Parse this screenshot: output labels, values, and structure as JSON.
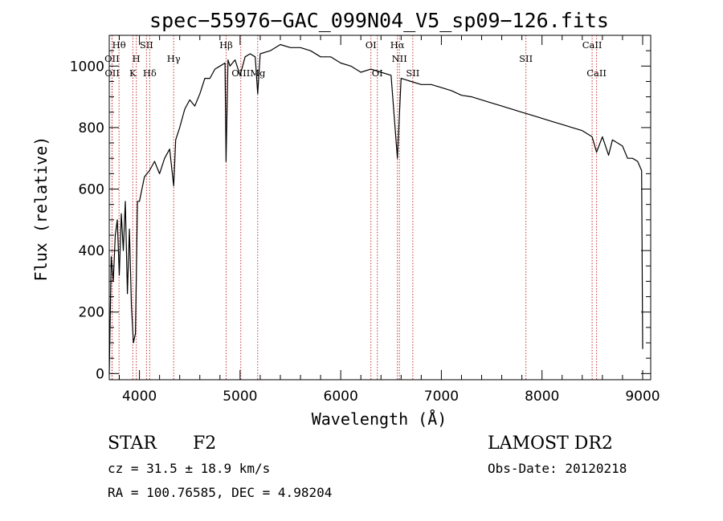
{
  "chart_data": {
    "type": "line",
    "title": "spec−55976−GAC_099N04_V5_sp09−126.fits",
    "xlabel": "Wavelength (Å)",
    "ylabel": "Flux (relative)",
    "xlim": [
      3700,
      9080
    ],
    "ylim": [
      -20,
      1100
    ],
    "xticks": [
      4000,
      5000,
      6000,
      7000,
      8000,
      9000
    ],
    "yticks": [
      0,
      200,
      400,
      600,
      800,
      1000
    ],
    "grid": false,
    "spectral_lines": [
      {
        "name": "Hθ",
        "wavelength": 3797,
        "row": 0
      },
      {
        "name": "OII",
        "wavelength": 3727,
        "row": 1
      },
      {
        "name": "OII",
        "wavelength": 3729,
        "row": 2
      },
      {
        "name": "SII",
        "wavelength": 4070,
        "row": 0
      },
      {
        "name": "H",
        "wavelength": 3969,
        "row": 1
      },
      {
        "name": "K",
        "wavelength": 3934,
        "row": 2
      },
      {
        "name": "Hδ",
        "wavelength": 4102,
        "row": 2
      },
      {
        "name": "Hγ",
        "wavelength": 4340,
        "row": 1
      },
      {
        "name": "Hβ",
        "wavelength": 4861,
        "row": 0
      },
      {
        "name": "OIII",
        "wavelength": 5007,
        "row": 2
      },
      {
        "name": "Mg",
        "wavelength": 5175,
        "row": 2
      },
      {
        "name": "OI",
        "wavelength": 6300,
        "row": 0
      },
      {
        "name": "OI",
        "wavelength": 6364,
        "row": 2
      },
      {
        "name": "Hα",
        "wavelength": 6563,
        "row": 0
      },
      {
        "name": "NII",
        "wavelength": 6583,
        "row": 1
      },
      {
        "name": "SII",
        "wavelength": 6716,
        "row": 2
      },
      {
        "name": "SII",
        "wavelength": 7840,
        "row": 1
      },
      {
        "name": "CaII",
        "wavelength": 8498,
        "row": 0
      },
      {
        "name": "CaII",
        "wavelength": 8542,
        "row": 2
      }
    ],
    "series": [
      {
        "x": [
          3700,
          3720,
          3740,
          3760,
          3780,
          3800,
          3820,
          3840,
          3860,
          3880,
          3900,
          3920,
          3940,
          3960,
          3980,
          4000,
          4050,
          4100,
          4150,
          4200,
          4250,
          4300,
          4340,
          4360,
          4400,
          4450,
          4500,
          4550,
          4600,
          4650,
          4700,
          4750,
          4800,
          4850,
          4861,
          4880,
          4900,
          4950,
          5000,
          5050,
          5100,
          5150,
          5175,
          5200,
          5300,
          5400,
          5500,
          5600,
          5700,
          5800,
          5900,
          6000,
          6100,
          6200,
          6300,
          6400,
          6500,
          6563,
          6600,
          6700,
          6800,
          6900,
          7000,
          7100,
          7200,
          7300,
          7400,
          7500,
          7600,
          7700,
          7800,
          7900,
          8000,
          8100,
          8200,
          8300,
          8400,
          8498,
          8542,
          8600,
          8662,
          8700,
          8800,
          8850,
          8900,
          8950,
          8990,
          9000
        ],
        "y": [
          0,
          380,
          300,
          450,
          500,
          320,
          520,
          400,
          560,
          260,
          470,
          220,
          100,
          130,
          560,
          560,
          640,
          660,
          690,
          650,
          700,
          730,
          610,
          760,
          800,
          860,
          890,
          870,
          910,
          960,
          960,
          990,
          1000,
          1010,
          690,
          1020,
          1000,
          1020,
          970,
          1030,
          1040,
          1030,
          910,
          1040,
          1050,
          1070,
          1060,
          1060,
          1050,
          1030,
          1030,
          1010,
          1000,
          980,
          990,
          980,
          970,
          700,
          960,
          950,
          940,
          940,
          930,
          920,
          905,
          900,
          890,
          880,
          870,
          860,
          850,
          840,
          830,
          820,
          810,
          800,
          790,
          770,
          720,
          770,
          710,
          760,
          740,
          700,
          700,
          690,
          660,
          80
        ]
      }
    ]
  },
  "info": {
    "object_class": "STAR",
    "subclass": "F2",
    "survey": "LAMOST DR2",
    "redshift": "cz = 31.5 ± 18.9 km/s",
    "obs_date": "Obs-Date: 20120218",
    "coords": "RA = 100.76585, DEC =   4.98204"
  },
  "colors": {
    "spectrum": "#000000",
    "line_markers": "#c83232",
    "axes": "#000000"
  }
}
